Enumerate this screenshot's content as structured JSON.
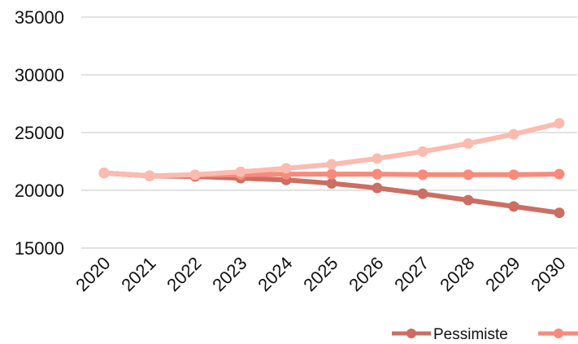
{
  "chart_data": {
    "type": "line",
    "title": "",
    "xlabel": "",
    "ylabel": "",
    "x": [
      2020,
      2021,
      2022,
      2023,
      2024,
      2025,
      2026,
      2027,
      2028,
      2029,
      2030
    ],
    "x_tick_labels": [
      "2020",
      "2021",
      "2022",
      "2023",
      "2024",
      "2025",
      "2026",
      "2027",
      "2028",
      "2029",
      "2030"
    ],
    "ylim": [
      15000,
      35000
    ],
    "y_ticks": [
      15000,
      20000,
      25000,
      30000,
      35000
    ],
    "y_tick_labels": [
      "15000",
      "20000",
      "25000",
      "30000",
      "35000"
    ],
    "grid": true,
    "legend_position": "bottom-right",
    "series": [
      {
        "name": "Pessimiste",
        "color": "#cc6e62",
        "values": [
          21500,
          21250,
          21200,
          21050,
          20900,
          20600,
          20200,
          19700,
          19150,
          18600,
          18050
        ]
      },
      {
        "color": "#fbbbb0",
        "values": [
          21500,
          21250,
          21350,
          21600,
          21900,
          22250,
          22750,
          23350,
          24050,
          24850,
          25800
        ]
      },
      {
        "color": "#f98a7b",
        "values": [
          21500,
          21250,
          21300,
          21350,
          21400,
          21400,
          21400,
          21350,
          21350,
          21350,
          21400
        ]
      }
    ]
  }
}
